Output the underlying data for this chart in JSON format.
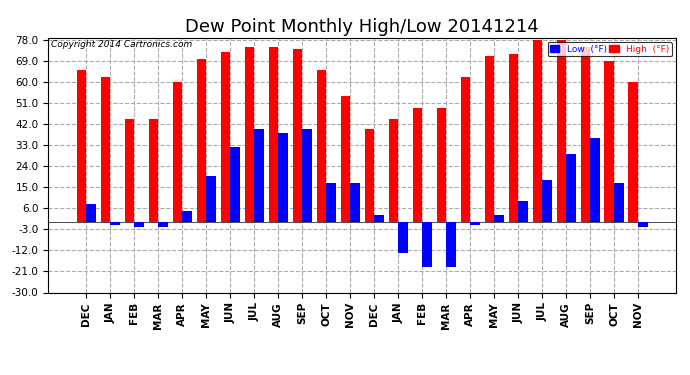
{
  "title": "Dew Point Monthly High/Low 20141214",
  "copyright": "Copyright 2014 Cartronics.com",
  "months": [
    "DEC",
    "JAN",
    "FEB",
    "MAR",
    "APR",
    "MAY",
    "JUN",
    "JUL",
    "AUG",
    "SEP",
    "OCT",
    "NOV",
    "DEC",
    "JAN",
    "FEB",
    "MAR",
    "APR",
    "MAY",
    "JUN",
    "JUL",
    "AUG",
    "SEP",
    "OCT",
    "NOV"
  ],
  "high_values": [
    65,
    62,
    44,
    44,
    60,
    70,
    73,
    75,
    75,
    74,
    65,
    54,
    40,
    44,
    49,
    49,
    62,
    71,
    72,
    78,
    78,
    75,
    69,
    60
  ],
  "low_values": [
    8,
    -1,
    -2,
    -2,
    5,
    20,
    32,
    40,
    38,
    40,
    17,
    17,
    3,
    -13,
    -19,
    -19,
    -1,
    3,
    9,
    18,
    29,
    36,
    17,
    -2
  ],
  "ylim": [
    -30,
    79
  ],
  "yticks": [
    -30.0,
    -21.0,
    -12.0,
    -3.0,
    6.0,
    15.0,
    24.0,
    33.0,
    42.0,
    51.0,
    60.0,
    69.0,
    78.0
  ],
  "bar_width": 0.4,
  "high_color": "#FF0000",
  "low_color": "#0000FF",
  "bg_color": "#FFFFFF",
  "grid_color": "#AAAAAA",
  "title_fontsize": 13,
  "label_fontsize": 7.5
}
